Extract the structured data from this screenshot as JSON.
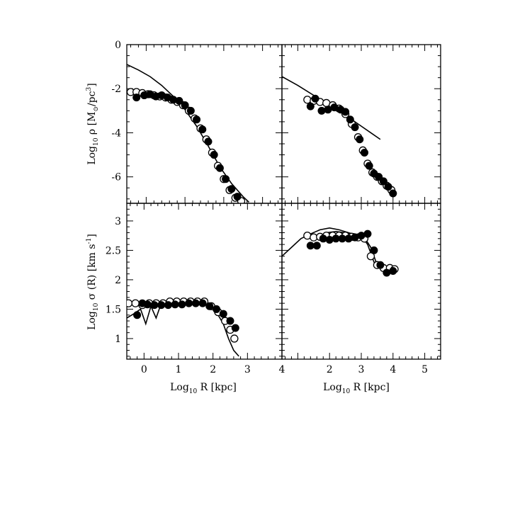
{
  "figure": {
    "x_title": {
      "prefix": "Log",
      "sub": "10",
      "rest": " R [kpc]"
    },
    "y_title_top": {
      "prefix": "Log",
      "sub": "10",
      "mid": " ρ [M",
      "sub2": "⊙",
      "mid2": "/pc",
      "sup": "3",
      "end": "]"
    },
    "y_title_bottom": {
      "prefix": "Log",
      "sub": "10",
      "mid": " σ (R) [km s",
      "sup": "-1",
      "end": "]"
    }
  },
  "chart_data": [
    {
      "type": "scatter",
      "panel": "top-left",
      "xlim": [
        -0.5,
        3.5
      ],
      "ylim": [
        -7.2,
        0
      ],
      "yticks": [
        0,
        -2,
        -4,
        -6
      ],
      "ytick_labels": [
        "0",
        "-2",
        "-4",
        "-6"
      ],
      "xticks": [],
      "series": [
        {
          "style": "line",
          "x": [
            -0.5,
            -0.2,
            0.1,
            0.4,
            0.7,
            1.0,
            1.3,
            1.6,
            1.9,
            2.2,
            2.5,
            2.65
          ],
          "y": [
            -0.9,
            -1.15,
            -1.45,
            -1.85,
            -2.35,
            -2.95,
            -3.7,
            -4.6,
            -5.55,
            -6.3,
            -6.9,
            -7.15
          ]
        },
        {
          "style": "open",
          "x": [
            -0.4,
            -0.25,
            -0.1,
            0.05,
            0.2,
            0.35,
            0.5,
            0.65,
            0.8,
            0.95,
            1.1,
            1.25,
            1.4,
            1.55,
            1.7,
            1.85,
            2.0,
            2.15,
            2.3,
            2.45
          ],
          "y": [
            -2.15,
            -2.15,
            -2.2,
            -2.25,
            -2.3,
            -2.35,
            -2.4,
            -2.5,
            -2.6,
            -2.75,
            -3.0,
            -3.35,
            -3.8,
            -4.3,
            -4.9,
            -5.5,
            -6.1,
            -6.6,
            -6.95,
            -7.1
          ]
        },
        {
          "style": "filled",
          "x": [
            -0.25,
            -0.05,
            0.1,
            0.25,
            0.4,
            0.55,
            0.7,
            0.85,
            1.0,
            1.15,
            1.3,
            1.45,
            1.6,
            1.75,
            1.9,
            2.05,
            2.2,
            2.35
          ],
          "y": [
            -2.4,
            -2.3,
            -2.25,
            -2.35,
            -2.3,
            -2.4,
            -2.5,
            -2.55,
            -2.75,
            -3.0,
            -3.4,
            -3.85,
            -4.4,
            -5.0,
            -5.6,
            -6.1,
            -6.55,
            -6.9
          ]
        }
      ]
    },
    {
      "type": "scatter",
      "panel": "top-right",
      "xlim": [
        0.5,
        5.5
      ],
      "ylim": [
        -7.2,
        0
      ],
      "xticks": [],
      "yticks": [],
      "series": [
        {
          "style": "line",
          "x": [
            0.5,
            1.0,
            1.5,
            2.0,
            2.5,
            3.0,
            3.3,
            3.6
          ],
          "y": [
            -1.45,
            -1.85,
            -2.3,
            -2.75,
            -3.2,
            -3.7,
            -4.0,
            -4.3
          ]
        },
        {
          "style": "open",
          "x": [
            1.3,
            1.5,
            1.7,
            1.9,
            2.1,
            2.3,
            2.5,
            2.7,
            2.9,
            3.05,
            3.2,
            3.35,
            3.5,
            3.65,
            3.8,
            3.95
          ],
          "y": [
            -2.5,
            -2.55,
            -2.6,
            -2.65,
            -2.75,
            -2.9,
            -3.15,
            -3.6,
            -4.2,
            -4.8,
            -5.4,
            -5.8,
            -6.0,
            -6.2,
            -6.4,
            -6.6
          ]
        },
        {
          "style": "filled",
          "x": [
            1.4,
            1.55,
            1.75,
            1.95,
            2.15,
            2.35,
            2.5,
            2.65,
            2.8,
            2.95,
            3.1,
            3.25,
            3.4,
            3.55,
            3.7,
            3.85,
            4.0
          ],
          "y": [
            -2.8,
            -2.45,
            -3.0,
            -2.95,
            -2.85,
            -2.95,
            -3.05,
            -3.4,
            -3.75,
            -4.3,
            -4.9,
            -5.5,
            -5.85,
            -6.0,
            -6.2,
            -6.45,
            -6.75
          ]
        }
      ]
    },
    {
      "type": "scatter",
      "panel": "bottom-left",
      "xlim": [
        -0.5,
        4
      ],
      "ylim": [
        0.65,
        3.3
      ],
      "xticks": [
        0,
        1,
        2,
        3,
        4
      ],
      "xtick_labels": [
        "0",
        "1",
        "2",
        "3",
        "4"
      ],
      "yticks": [
        1,
        1.5,
        2,
        2.5,
        3
      ],
      "ytick_labels": [
        "1",
        "1.5",
        "2",
        "2.5",
        "3"
      ],
      "series": [
        {
          "style": "line",
          "x": [
            -0.5,
            -0.3,
            -0.1,
            0.05,
            0.2,
            0.35,
            0.5,
            0.8,
            1.2,
            1.6,
            1.9,
            2.1,
            2.3,
            2.45,
            2.6,
            2.75
          ],
          "y": [
            1.35,
            1.42,
            1.5,
            1.25,
            1.55,
            1.35,
            1.6,
            1.58,
            1.6,
            1.62,
            1.55,
            1.45,
            1.25,
            1.0,
            0.8,
            0.7
          ]
        },
        {
          "style": "open",
          "x": [
            -0.45,
            -0.25,
            -0.05,
            0.15,
            0.35,
            0.55,
            0.75,
            0.95,
            1.15,
            1.35,
            1.55,
            1.75,
            1.95,
            2.15,
            2.35,
            2.5,
            2.62
          ],
          "y": [
            1.6,
            1.6,
            1.57,
            1.6,
            1.6,
            1.6,
            1.63,
            1.63,
            1.63,
            1.63,
            1.63,
            1.63,
            1.55,
            1.45,
            1.3,
            1.15,
            1.0
          ]
        },
        {
          "style": "filled",
          "x": [
            -0.2,
            -0.05,
            0.1,
            0.3,
            0.5,
            0.7,
            0.9,
            1.1,
            1.3,
            1.5,
            1.7,
            1.9,
            2.1,
            2.3,
            2.5,
            2.65
          ],
          "y": [
            1.4,
            1.6,
            1.58,
            1.57,
            1.57,
            1.57,
            1.58,
            1.58,
            1.6,
            1.6,
            1.6,
            1.55,
            1.5,
            1.42,
            1.3,
            1.18
          ]
        }
      ]
    },
    {
      "type": "scatter",
      "panel": "bottom-right",
      "xlim": [
        0.5,
        5.5
      ],
      "ylim": [
        0.65,
        3.3
      ],
      "xticks": [
        1,
        2,
        3,
        4,
        5
      ],
      "xtick_labels": [
        "",
        "2",
        "3",
        "4",
        "5"
      ],
      "yticks": [],
      "series": [
        {
          "style": "line",
          "x": [
            0.5,
            0.8,
            1.1,
            1.4,
            1.7,
            2.0,
            2.3,
            2.6,
            2.9,
            3.1,
            3.3,
            3.5,
            3.7,
            3.9,
            4.05
          ],
          "y": [
            2.4,
            2.55,
            2.7,
            2.78,
            2.85,
            2.88,
            2.85,
            2.8,
            2.75,
            2.72,
            2.55,
            2.25,
            2.2,
            2.18,
            2.15
          ]
        },
        {
          "style": "line",
          "x": [
            1.6,
            1.9,
            2.2,
            2.5,
            2.8,
            3.0,
            3.2,
            3.4,
            3.6,
            3.8,
            4.0
          ],
          "y": [
            2.72,
            2.8,
            2.82,
            2.8,
            2.78,
            2.75,
            2.6,
            2.3,
            2.2,
            2.15,
            2.12
          ]
        },
        {
          "style": "open",
          "x": [
            1.3,
            1.5,
            1.7,
            1.9,
            2.1,
            2.3,
            2.5,
            2.7,
            2.9,
            3.1,
            3.3,
            3.5,
            3.7,
            3.9,
            4.05
          ],
          "y": [
            2.75,
            2.72,
            2.73,
            2.75,
            2.75,
            2.75,
            2.75,
            2.73,
            2.72,
            2.7,
            2.4,
            2.25,
            2.2,
            2.2,
            2.18
          ]
        },
        {
          "style": "filled",
          "x": [
            1.4,
            1.6,
            1.8,
            2.0,
            2.2,
            2.4,
            2.6,
            2.8,
            3.0,
            3.2,
            3.4,
            3.6,
            3.8,
            4.0
          ],
          "y": [
            2.58,
            2.58,
            2.7,
            2.68,
            2.7,
            2.7,
            2.7,
            2.72,
            2.75,
            2.78,
            2.5,
            2.25,
            2.12,
            2.15
          ]
        }
      ]
    }
  ]
}
